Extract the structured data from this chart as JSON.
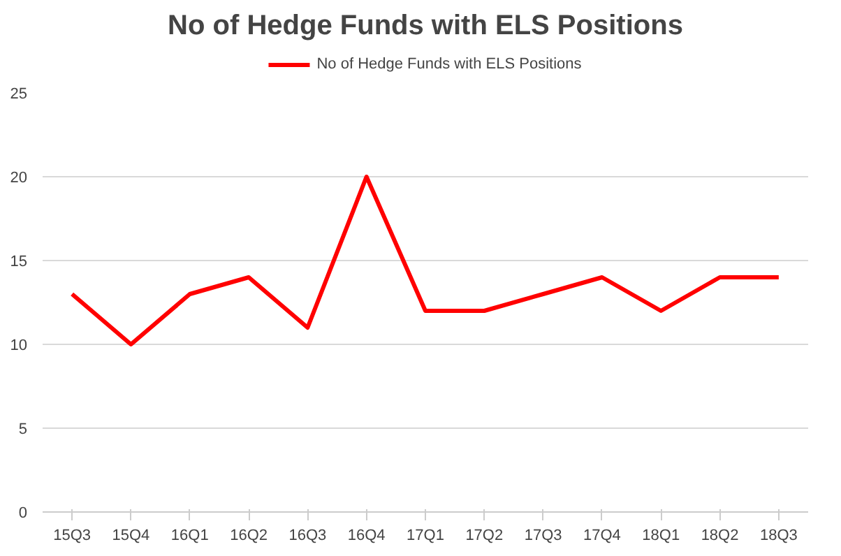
{
  "chart_data": {
    "type": "line",
    "title": "No of Hedge Funds with ELS Positions",
    "categories": [
      "15Q3",
      "15Q4",
      "16Q1",
      "16Q2",
      "16Q3",
      "16Q4",
      "17Q1",
      "17Q2",
      "17Q3",
      "17Q4",
      "18Q1",
      "18Q2",
      "18Q3"
    ],
    "series": [
      {
        "name": "No of Hedge Funds with ELS Positions",
        "color": "#ff0000",
        "values": [
          13,
          10,
          13,
          14,
          11,
          20,
          12,
          12,
          13,
          14,
          12,
          14,
          14
        ]
      }
    ],
    "ylim": [
      0,
      25
    ],
    "yticks": [
      0,
      5,
      10,
      15,
      20,
      25
    ],
    "grid": "y",
    "legend": "top",
    "marker": "none",
    "line_style": "solid"
  }
}
